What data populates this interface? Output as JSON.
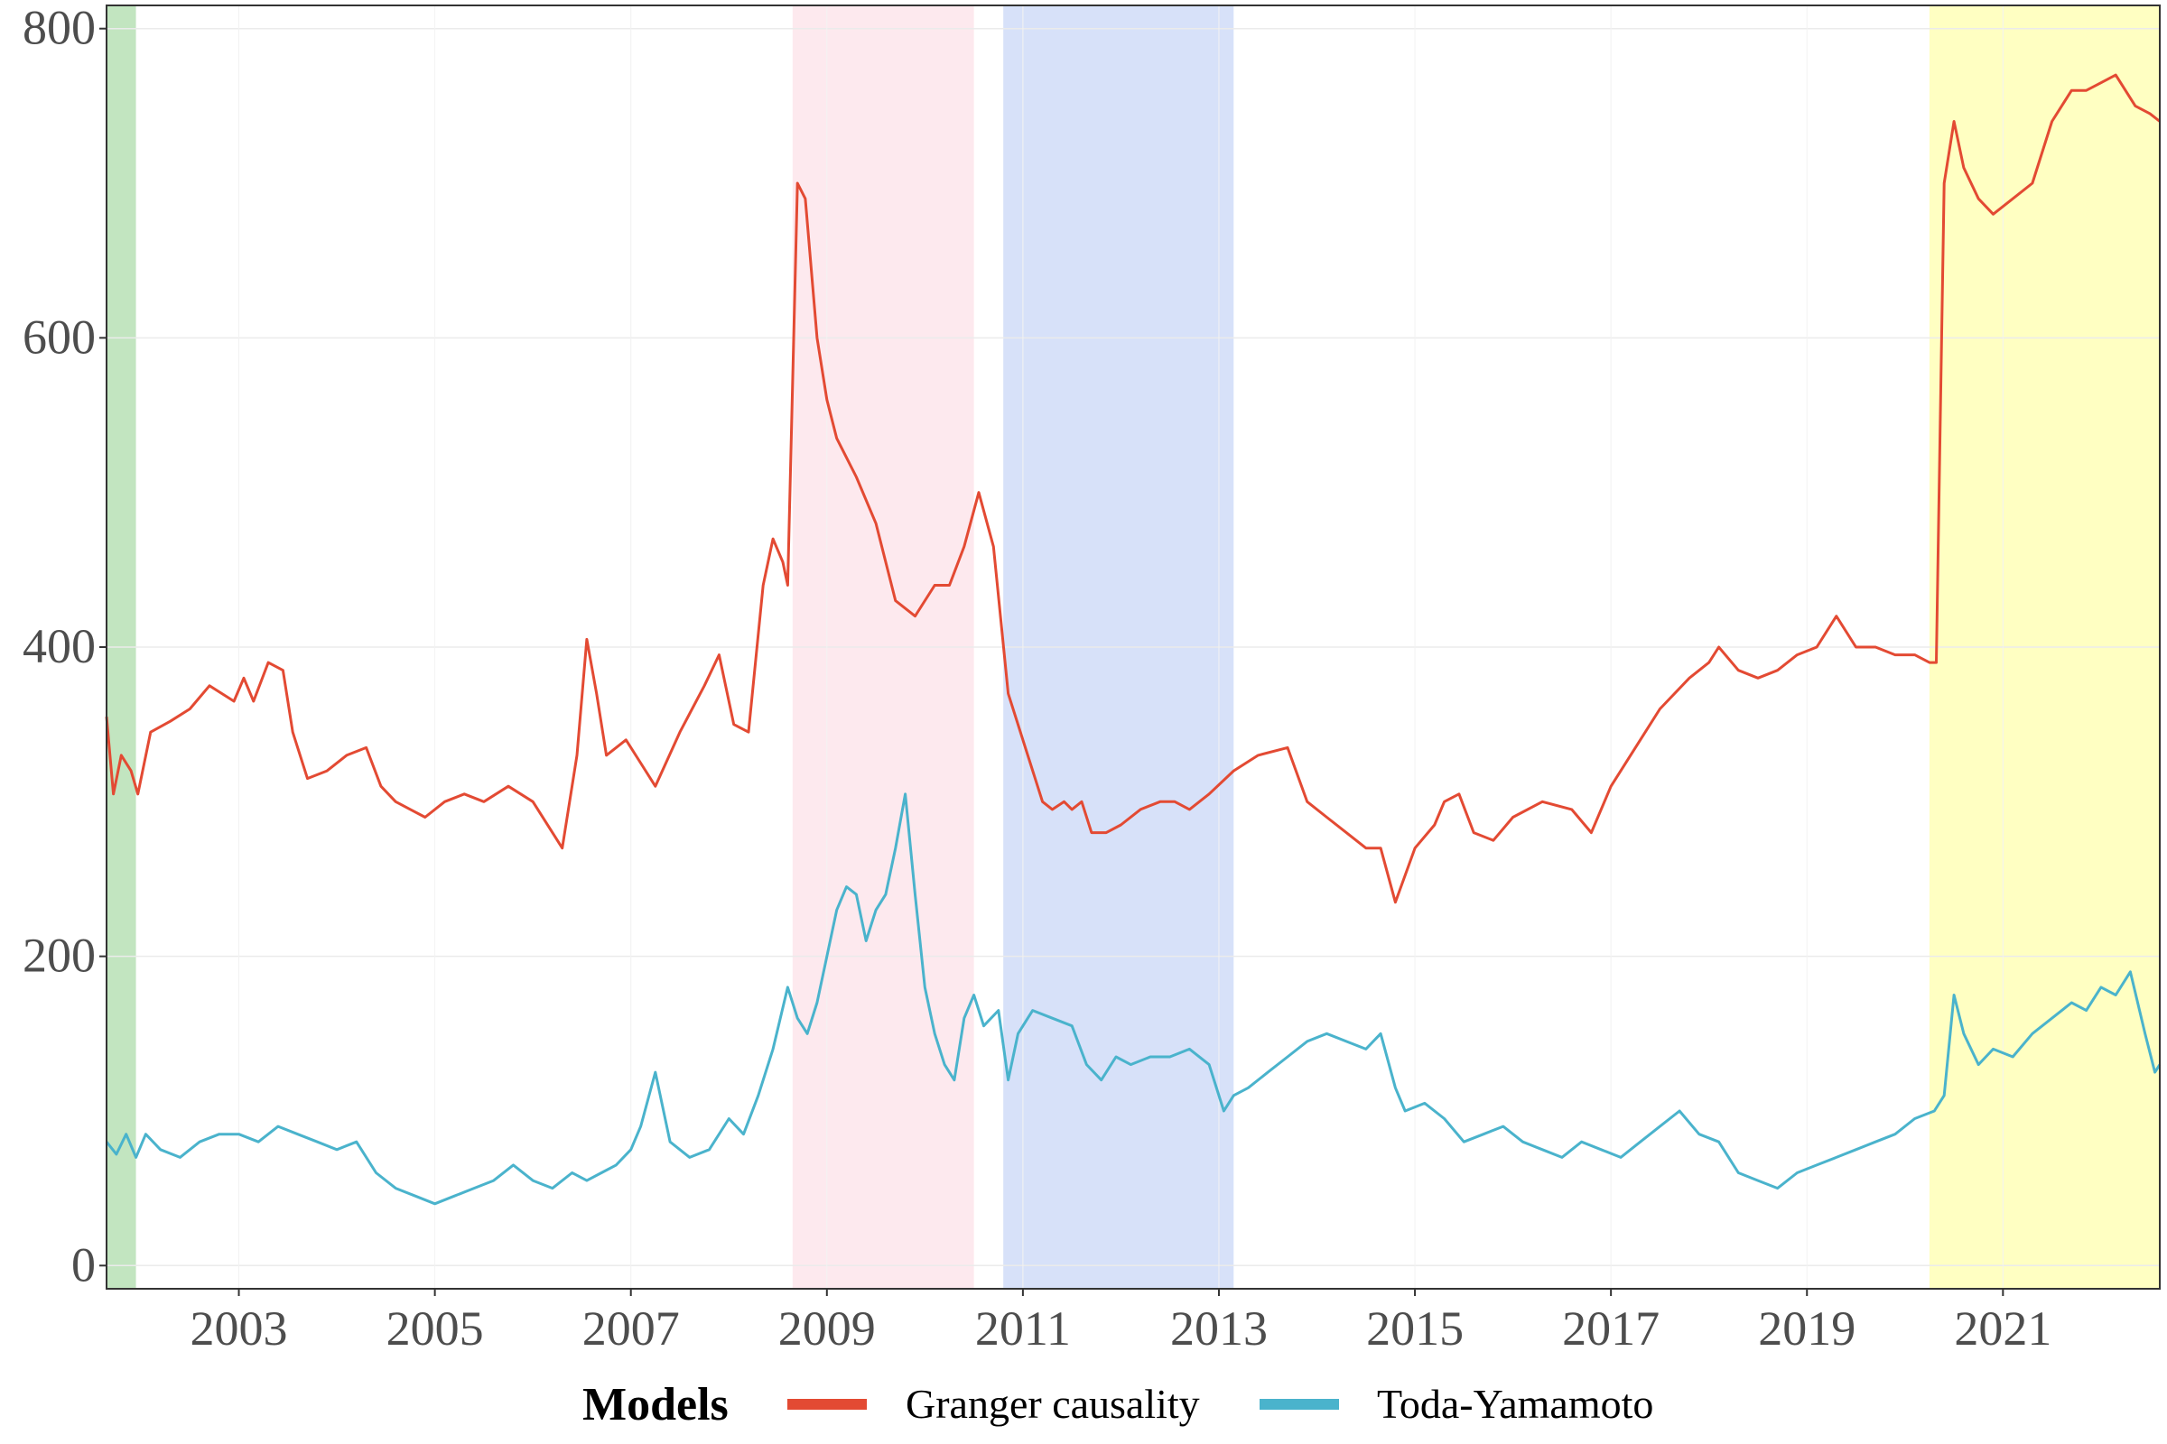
{
  "chart_data": {
    "type": "line",
    "title": "",
    "xlabel": "",
    "ylabel": "",
    "xlim": [
      2001.65,
      2022.6
    ],
    "ylim": [
      -15,
      815
    ],
    "grid": true,
    "legend_position": "bottom",
    "x_ticks": [
      2003,
      2005,
      2007,
      2009,
      2011,
      2013,
      2015,
      2017,
      2019,
      2021
    ],
    "x_tick_labels": [
      "2003",
      "2005",
      "2007",
      "2009",
      "2011",
      "2013",
      "2015",
      "2017",
      "2019",
      "2021"
    ],
    "y_ticks": [
      0,
      200,
      400,
      600,
      800
    ],
    "y_tick_labels": [
      "0",
      "200",
      "400",
      "600",
      "800"
    ],
    "shaded_regions": [
      {
        "from": 2001.65,
        "to": 2001.95,
        "color": "#c2e5c0"
      },
      {
        "from": 2008.65,
        "to": 2010.5,
        "color": "#fde9ee"
      },
      {
        "from": 2010.8,
        "to": 2013.15,
        "color": "#d7e1f9"
      },
      {
        "from": 2020.25,
        "to": 2022.6,
        "color": "#ffffc2"
      }
    ],
    "legend": {
      "title": "Models",
      "entries": [
        "Granger causality",
        "Toda-Yamamoto"
      ]
    },
    "series": [
      {
        "name": "Granger causality",
        "color": "#e34a33",
        "x": [
          2001.65,
          2001.72,
          2001.8,
          2001.9,
          2001.97,
          2002.1,
          2002.3,
          2002.5,
          2002.7,
          2002.95,
          2003.05,
          2003.15,
          2003.3,
          2003.45,
          2003.55,
          2003.7,
          2003.9,
          2004.1,
          2004.3,
          2004.45,
          2004.6,
          2004.75,
          2004.9,
          2005.1,
          2005.3,
          2005.5,
          2005.75,
          2006.0,
          2006.3,
          2006.45,
          2006.55,
          2006.65,
          2006.75,
          2006.95,
          2007.1,
          2007.25,
          2007.5,
          2007.75,
          2007.9,
          2008.05,
          2008.2,
          2008.35,
          2008.45,
          2008.55,
          2008.6,
          2008.7,
          2008.78,
          2008.9,
          2009.0,
          2009.1,
          2009.3,
          2009.5,
          2009.7,
          2009.9,
          2010.1,
          2010.25,
          2010.4,
          2010.55,
          2010.7,
          2010.85,
          2011.05,
          2011.2,
          2011.3,
          2011.42,
          2011.5,
          2011.6,
          2011.7,
          2011.85,
          2012.0,
          2012.2,
          2012.4,
          2012.55,
          2012.7,
          2012.9,
          2013.15,
          2013.4,
          2013.7,
          2013.9,
          2014.1,
          2014.3,
          2014.5,
          2014.65,
          2014.8,
          2015.0,
          2015.2,
          2015.3,
          2015.45,
          2015.6,
          2015.8,
          2016.0,
          2016.3,
          2016.6,
          2016.8,
          2017.0,
          2017.3,
          2017.5,
          2017.8,
          2018.0,
          2018.1,
          2018.3,
          2018.5,
          2018.7,
          2018.9,
          2019.1,
          2019.3,
          2019.5,
          2019.7,
          2019.9,
          2020.1,
          2020.25,
          2020.32,
          2020.4,
          2020.5,
          2020.6,
          2020.75,
          2020.9,
          2021.1,
          2021.3,
          2021.5,
          2021.7,
          2021.85,
          2022.0,
          2022.15,
          2022.35,
          2022.5,
          2022.6
        ],
        "values": [
          355,
          305,
          330,
          320,
          305,
          345,
          352,
          360,
          375,
          365,
          380,
          365,
          390,
          385,
          345,
          315,
          320,
          330,
          335,
          310,
          300,
          295,
          290,
          300,
          305,
          300,
          310,
          300,
          270,
          330,
          405,
          370,
          330,
          340,
          325,
          310,
          345,
          375,
          395,
          350,
          345,
          440,
          470,
          455,
          440,
          700,
          690,
          600,
          560,
          535,
          510,
          480,
          430,
          420,
          440,
          440,
          465,
          500,
          465,
          370,
          330,
          300,
          295,
          300,
          295,
          300,
          280,
          280,
          285,
          295,
          300,
          300,
          295,
          305,
          320,
          330,
          335,
          300,
          290,
          280,
          270,
          270,
          235,
          270,
          285,
          300,
          305,
          280,
          275,
          290,
          300,
          295,
          280,
          310,
          340,
          360,
          380,
          390,
          400,
          385,
          380,
          385,
          395,
          400,
          420,
          400,
          400,
          395,
          395,
          390,
          390,
          700,
          740,
          710,
          690,
          680,
          690,
          700,
          740,
          760,
          760,
          765,
          770,
          750,
          745,
          740
        ]
      },
      {
        "name": "Toda-Yamamoto",
        "color": "#4ab3cc",
        "x": [
          2001.65,
          2001.75,
          2001.85,
          2001.95,
          2002.05,
          2002.2,
          2002.4,
          2002.6,
          2002.8,
          2003.0,
          2003.2,
          2003.4,
          2003.6,
          2003.8,
          2004.0,
          2004.2,
          2004.4,
          2004.6,
          2004.8,
          2005.0,
          2005.2,
          2005.4,
          2005.6,
          2005.8,
          2006.0,
          2006.2,
          2006.4,
          2006.55,
          2006.7,
          2006.85,
          2007.0,
          2007.1,
          2007.25,
          2007.4,
          2007.6,
          2007.8,
          2008.0,
          2008.15,
          2008.3,
          2008.45,
          2008.6,
          2008.7,
          2008.8,
          2008.9,
          2009.0,
          2009.1,
          2009.2,
          2009.3,
          2009.4,
          2009.5,
          2009.6,
          2009.7,
          2009.8,
          2009.9,
          2010.0,
          2010.1,
          2010.2,
          2010.3,
          2010.4,
          2010.5,
          2010.6,
          2010.75,
          2010.85,
          2010.95,
          2011.1,
          2011.3,
          2011.5,
          2011.65,
          2011.8,
          2011.95,
          2012.1,
          2012.3,
          2012.5,
          2012.7,
          2012.9,
          2013.05,
          2013.15,
          2013.3,
          2013.5,
          2013.7,
          2013.9,
          2014.1,
          2014.3,
          2014.5,
          2014.65,
          2014.8,
          2014.9,
          2015.1,
          2015.3,
          2015.5,
          2015.7,
          2015.9,
          2016.1,
          2016.3,
          2016.5,
          2016.7,
          2016.9,
          2017.1,
          2017.3,
          2017.5,
          2017.7,
          2017.9,
          2018.1,
          2018.3,
          2018.5,
          2018.7,
          2018.9,
          2019.1,
          2019.3,
          2019.5,
          2019.7,
          2019.9,
          2020.1,
          2020.3,
          2020.4,
          2020.5,
          2020.6,
          2020.75,
          2020.9,
          2021.1,
          2021.3,
          2021.5,
          2021.7,
          2021.85,
          2022.0,
          2022.15,
          2022.3,
          2022.45,
          2022.55,
          2022.6
        ],
        "values": [
          80,
          72,
          85,
          70,
          85,
          75,
          70,
          80,
          85,
          85,
          80,
          90,
          85,
          80,
          75,
          80,
          60,
          50,
          45,
          40,
          45,
          50,
          55,
          65,
          55,
          50,
          60,
          55,
          60,
          65,
          75,
          90,
          125,
          80,
          70,
          75,
          95,
          85,
          110,
          140,
          180,
          160,
          150,
          170,
          200,
          230,
          245,
          240,
          210,
          230,
          240,
          270,
          305,
          240,
          180,
          150,
          130,
          120,
          160,
          175,
          155,
          165,
          120,
          150,
          165,
          160,
          155,
          130,
          120,
          135,
          130,
          135,
          135,
          140,
          130,
          100,
          110,
          115,
          125,
          135,
          145,
          150,
          145,
          140,
          150,
          115,
          100,
          105,
          95,
          80,
          85,
          90,
          80,
          75,
          70,
          80,
          75,
          70,
          80,
          90,
          100,
          85,
          80,
          60,
          55,
          50,
          60,
          65,
          70,
          75,
          80,
          85,
          95,
          100,
          110,
          175,
          150,
          130,
          140,
          135,
          150,
          160,
          170,
          165,
          180,
          175,
          190,
          150,
          125,
          130
        ]
      }
    ]
  }
}
